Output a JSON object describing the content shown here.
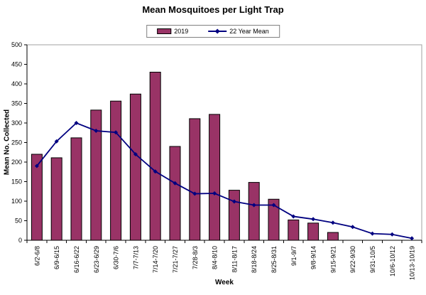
{
  "title": "Mean Mosquitoes per Light Trap",
  "legend": {
    "items": [
      {
        "label": "2019",
        "type": "bar"
      },
      {
        "label": "22 Year Mean",
        "type": "line"
      }
    ]
  },
  "colors": {
    "bar_fill": "#993366",
    "bar_stroke": "#000000",
    "line": "#000080",
    "axis": "#000000",
    "plot_border": "#a0a0a0",
    "background": "#ffffff"
  },
  "chart_data": {
    "type": "bar",
    "title": "Mean Mosquitoes per Light Trap",
    "xlabel": "Week",
    "ylabel": "Mean No. Collected",
    "ylim": [
      0,
      500
    ],
    "ytick_step": 50,
    "grid": false,
    "legend_position": "top-center",
    "categories": [
      "6/2-6/8",
      "6/9-6/15",
      "6/16-6/22",
      "6/23-6/29",
      "6/30-7/6",
      "7/7-7/13",
      "7/14-7/20",
      "7/21-7/27",
      "7/28-8/3",
      "8/4-8/10",
      "8/11-8/17",
      "8/18-8/24",
      "8/25-8/31",
      "9/1-9/7",
      "9/8-9/14",
      "9/15-9/21",
      "9/22-9/30",
      "9/31-10/5",
      "10/6-10/12",
      "10/13-10/19"
    ],
    "series": [
      {
        "name": "2019",
        "type": "bar",
        "color": "#993366",
        "values": [
          220,
          211,
          262,
          333,
          356,
          374,
          430,
          240,
          311,
          322,
          128,
          148,
          105,
          52,
          44,
          20,
          0,
          0,
          0,
          0
        ]
      },
      {
        "name": "22 Year Mean",
        "type": "line",
        "marker": "diamond",
        "color": "#000080",
        "values": [
          190,
          253,
          300,
          280,
          276,
          220,
          176,
          146,
          119,
          120,
          99,
          90,
          90,
          61,
          54,
          45,
          34,
          17,
          15,
          5
        ]
      }
    ]
  }
}
